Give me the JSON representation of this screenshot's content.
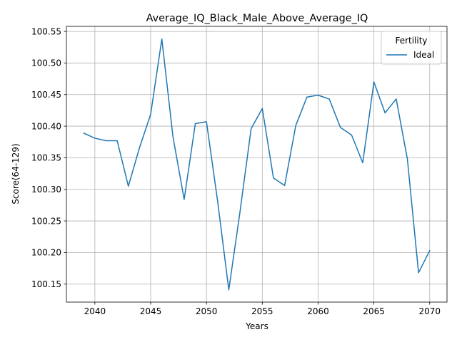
{
  "chart_data": {
    "type": "line",
    "title": "Average_IQ_Black_Male_Above_Average_IQ",
    "xlabel": "Years",
    "ylabel": "Score(64-129)",
    "xlim": [
      2037.45,
      2071.55
    ],
    "ylim": [
      100.1215,
      100.558
    ],
    "xticks": [
      2040,
      2045,
      2050,
      2055,
      2060,
      2065,
      2070
    ],
    "yticks": [
      100.15,
      100.2,
      100.25,
      100.3,
      100.35,
      100.4,
      100.45,
      100.5,
      100.55
    ],
    "grid": true,
    "legend": {
      "title": "Fertility",
      "placement": "top-right"
    },
    "series": [
      {
        "name": "Ideal",
        "color": "#1f77b4",
        "x": [
          2039,
          2040,
          2041,
          2042,
          2043,
          2044,
          2045,
          2046,
          2047,
          2048,
          2049,
          2050,
          2051,
          2052,
          2053,
          2054,
          2055,
          2056,
          2057,
          2058,
          2059,
          2060,
          2061,
          2062,
          2063,
          2064,
          2065,
          2066,
          2067,
          2068,
          2069,
          2070
        ],
        "y": [
          100.389,
          100.381,
          100.377,
          100.377,
          100.305,
          100.366,
          100.419,
          100.538,
          100.383,
          100.284,
          100.404,
          100.407,
          100.281,
          100.141,
          100.264,
          100.396,
          100.428,
          100.318,
          100.306,
          100.401,
          100.446,
          100.449,
          100.443,
          100.398,
          100.386,
          100.342,
          100.47,
          100.421,
          100.443,
          100.348,
          100.168,
          100.203
        ]
      }
    ]
  }
}
